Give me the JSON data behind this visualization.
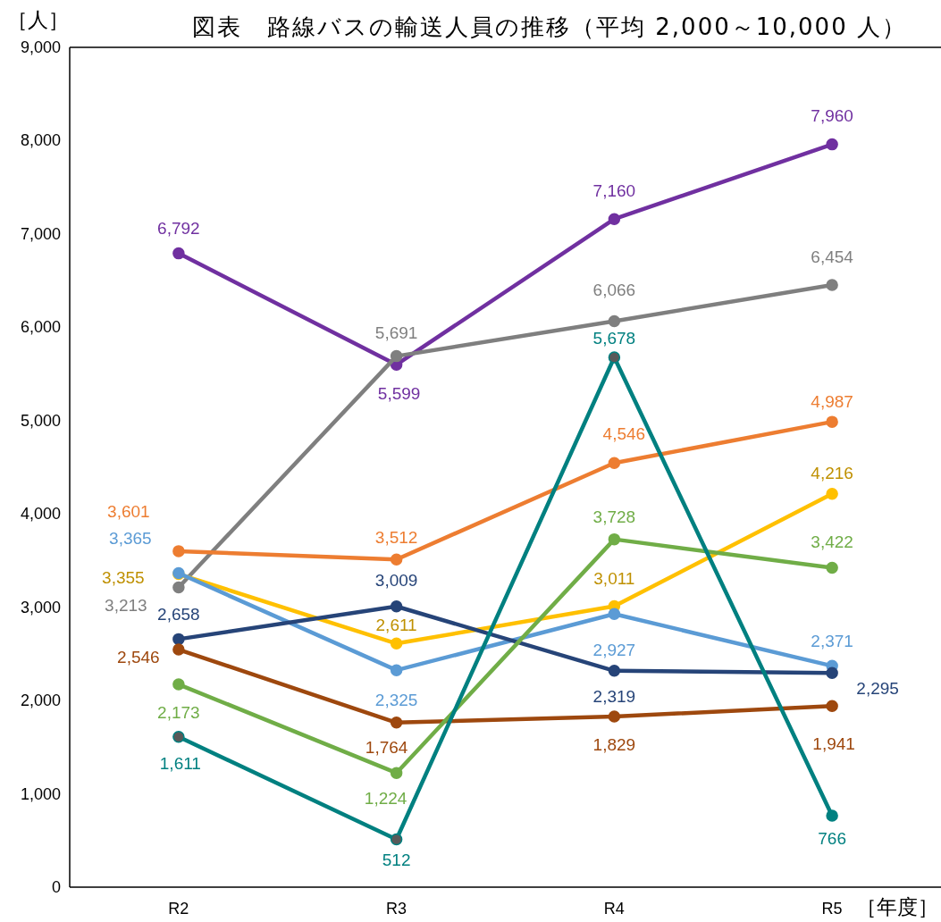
{
  "chart_data": {
    "type": "line",
    "title": "図表　路線バスの輸送人員の推移（平均 2,000～10,000 人）",
    "ylabel": "［人］",
    "xlabel": "［年度］",
    "categories": [
      "R2",
      "R3",
      "R4",
      "R5"
    ],
    "ylim": [
      0,
      9000
    ],
    "yticks": [
      0,
      {
        "value": 1000,
        "label": "1,000"
      },
      {
        "value": 2000,
        "label": "2,000"
      },
      {
        "value": 3000,
        "label": "3,000"
      },
      {
        "value": 4000,
        "label": "4,000"
      },
      {
        "value": 5000,
        "label": "5,000"
      },
      {
        "value": 6000,
        "label": "6,000"
      },
      {
        "value": 7000,
        "label": "7,000"
      },
      {
        "value": 8000,
        "label": "8,000"
      },
      {
        "value": 9000,
        "label": "9,000"
      }
    ],
    "marker": "circle",
    "line_style": "solid",
    "series": [
      {
        "color": "#7030a0",
        "values": [
          6792,
          5599,
          7160,
          7960
        ],
        "value_labels": [
          "6,792",
          "5,599",
          "7,160",
          "7,960"
        ]
      },
      {
        "color": "#7f7f7f",
        "values": [
          3213,
          5691,
          6066,
          6454
        ],
        "value_labels": [
          "3,213",
          "5,691",
          "6,066",
          "6,454"
        ]
      },
      {
        "color": "#ed7d31",
        "values": [
          3601,
          3512,
          4546,
          4987
        ],
        "value_labels": [
          "3,601",
          "3,512",
          "4,546",
          "4,987"
        ]
      },
      {
        "color": "#ffc000",
        "values": [
          3355,
          2611,
          3011,
          4216
        ],
        "value_labels": [
          "3,355",
          "2,611",
          "3,011",
          "4,216"
        ]
      },
      {
        "color": "#5b9bd5",
        "values": [
          3365,
          2325,
          2927,
          2371
        ],
        "value_labels": [
          "3,365",
          "2,325",
          "2,927",
          "2,371"
        ]
      },
      {
        "color": "#264478",
        "values": [
          2658,
          3009,
          2319,
          2295
        ],
        "value_labels": [
          "2,658",
          "3,009",
          "2,319",
          "2,295"
        ]
      },
      {
        "color": "#9e480e",
        "values": [
          2546,
          1764,
          1829,
          1941
        ],
        "value_labels": [
          "2,546",
          "1,764",
          "1,829",
          "1,941"
        ]
      },
      {
        "color": "#70ad47",
        "values": [
          2173,
          1224,
          3728,
          3422
        ],
        "value_labels": [
          "2,173",
          "1,224",
          "3,728",
          "3,422"
        ]
      },
      {
        "color": "#008080",
        "colors": [
          "#595959",
          "#595959",
          "#595959",
          "#008080"
        ],
        "values": [
          1611,
          512,
          5678,
          766
        ],
        "value_labels": [
          "1,611",
          "512",
          "5,678",
          "766"
        ]
      }
    ]
  }
}
